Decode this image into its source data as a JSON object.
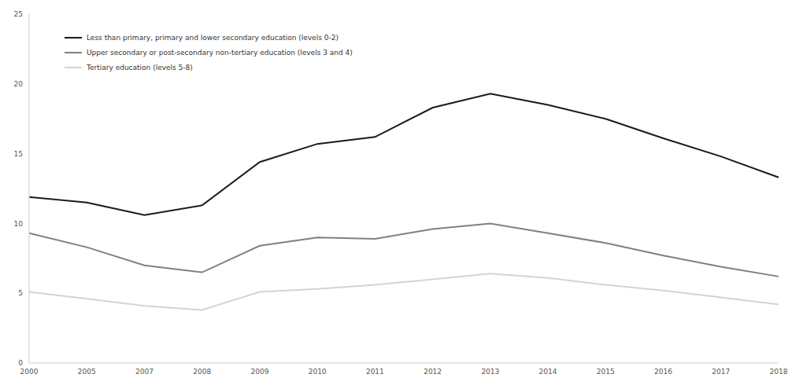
{
  "chart_data": {
    "type": "line",
    "categories": [
      "2000",
      "2005",
      "2007",
      "2008",
      "2009",
      "2010",
      "2011",
      "2012",
      "2013",
      "2014",
      "2015",
      "2016",
      "2017",
      "2018"
    ],
    "series": [
      {
        "name": "Less than primary, primary and lower secondary education (levels 0-2)",
        "color": "#1a1a1a",
        "values": [
          11.9,
          11.5,
          10.6,
          11.3,
          14.4,
          15.7,
          16.2,
          18.3,
          19.3,
          18.5,
          17.5,
          16.1,
          14.8,
          13.3
        ]
      },
      {
        "name": "Upper secondary or post-secondary non-tertiary education (levels 3 and 4)",
        "color": "#808080",
        "values": [
          9.3,
          8.3,
          7.0,
          6.5,
          8.4,
          9.0,
          8.9,
          9.6,
          10.0,
          9.3,
          8.6,
          7.7,
          6.9,
          6.2
        ]
      },
      {
        "name": "Tertiary education (levels 5-8)",
        "color": "#d4d4d4",
        "values": [
          5.1,
          4.6,
          4.1,
          3.8,
          5.1,
          5.3,
          5.6,
          6.0,
          6.4,
          6.1,
          5.6,
          5.2,
          4.7,
          4.2
        ]
      }
    ],
    "ylim": [
      0,
      25
    ],
    "yticks": [
      0,
      5,
      10,
      15,
      20,
      25
    ],
    "grid": false,
    "legend": "upper left",
    "data_labels": false
  }
}
